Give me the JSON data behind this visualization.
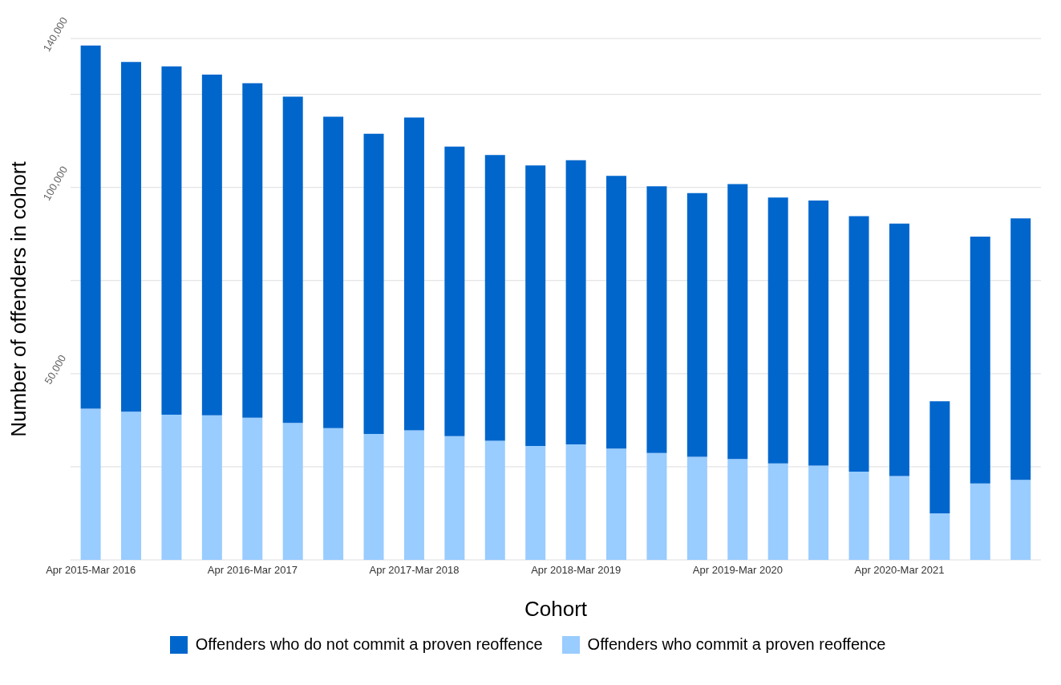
{
  "chart_data": {
    "type": "bar",
    "stacked": true,
    "xlabel": "Cohort",
    "ylabel": "Number of offenders in cohort",
    "categories": [
      "Apr 2015-Mar 2016",
      null,
      null,
      null,
      "Apr 2016-Mar 2017",
      null,
      null,
      null,
      "Apr 2017-Mar 2018",
      null,
      null,
      null,
      "Apr 2018-Mar 2019",
      null,
      null,
      null,
      "Apr 2019-Mar 2020",
      null,
      null,
      null,
      "Apr 2020-Mar 2021",
      null,
      null,
      null
    ],
    "series": [
      {
        "name": "Offenders who commit a proven reoffence",
        "color": "#99ccff",
        "values": [
          40600,
          39800,
          39000,
          38800,
          38200,
          36800,
          35400,
          33800,
          34800,
          33200,
          32000,
          30600,
          31000,
          29900,
          28700,
          27700,
          27100,
          25900,
          25300,
          23700,
          22500,
          12500,
          20500,
          21500
        ]
      },
      {
        "name": "Offenders who do not commit a proven reoffence",
        "color": "#0066cc",
        "values": [
          97500,
          93900,
          93500,
          91500,
          89800,
          87600,
          83600,
          80600,
          84000,
          77800,
          76700,
          75300,
          76300,
          73200,
          71600,
          70800,
          73800,
          71400,
          71200,
          68600,
          67800,
          30100,
          66300,
          70200
        ]
      }
    ],
    "ylim": [
      0,
      140000
    ],
    "yticks": [
      {
        "value": 0,
        "label": null
      },
      {
        "value": 25000,
        "label": null
      },
      {
        "value": 50000,
        "label": "50,000"
      },
      {
        "value": 75000,
        "label": null
      },
      {
        "value": 100000,
        "label": "100,000"
      },
      {
        "value": 125000,
        "label": null
      },
      {
        "value": 140000,
        "label": "140,000"
      }
    ],
    "grid": "y",
    "legend": "bottom"
  }
}
